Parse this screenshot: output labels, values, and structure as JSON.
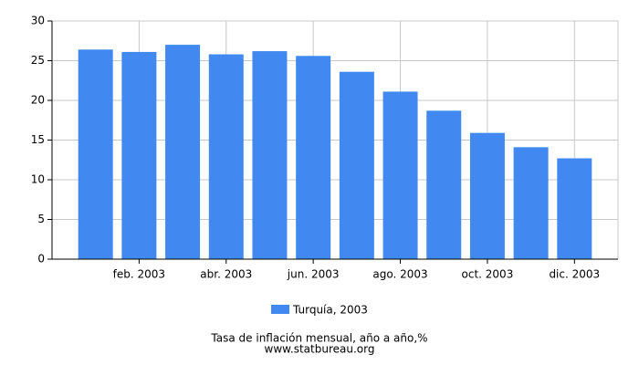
{
  "chart_data": {
    "type": "bar",
    "title": "Tasa de inflación mensual, año a año,%",
    "source": "www.statbureau.org",
    "categories": [
      null,
      "feb. 2003",
      null,
      "abr. 2003",
      null,
      "jun. 2003",
      null,
      "ago. 2003",
      null,
      "oct. 2003",
      null,
      "dic. 2003"
    ],
    "series": [
      {
        "name": "Turquía, 2003",
        "color": "#4189f0",
        "values": [
          26.4,
          26.1,
          27.0,
          25.8,
          26.2,
          25.6,
          23.6,
          21.1,
          18.7,
          15.9,
          14.1,
          12.7
        ]
      }
    ],
    "ylim": [
      0,
      30
    ],
    "yticks": [
      0,
      5,
      10,
      15,
      20,
      25,
      30
    ],
    "grid": true
  }
}
